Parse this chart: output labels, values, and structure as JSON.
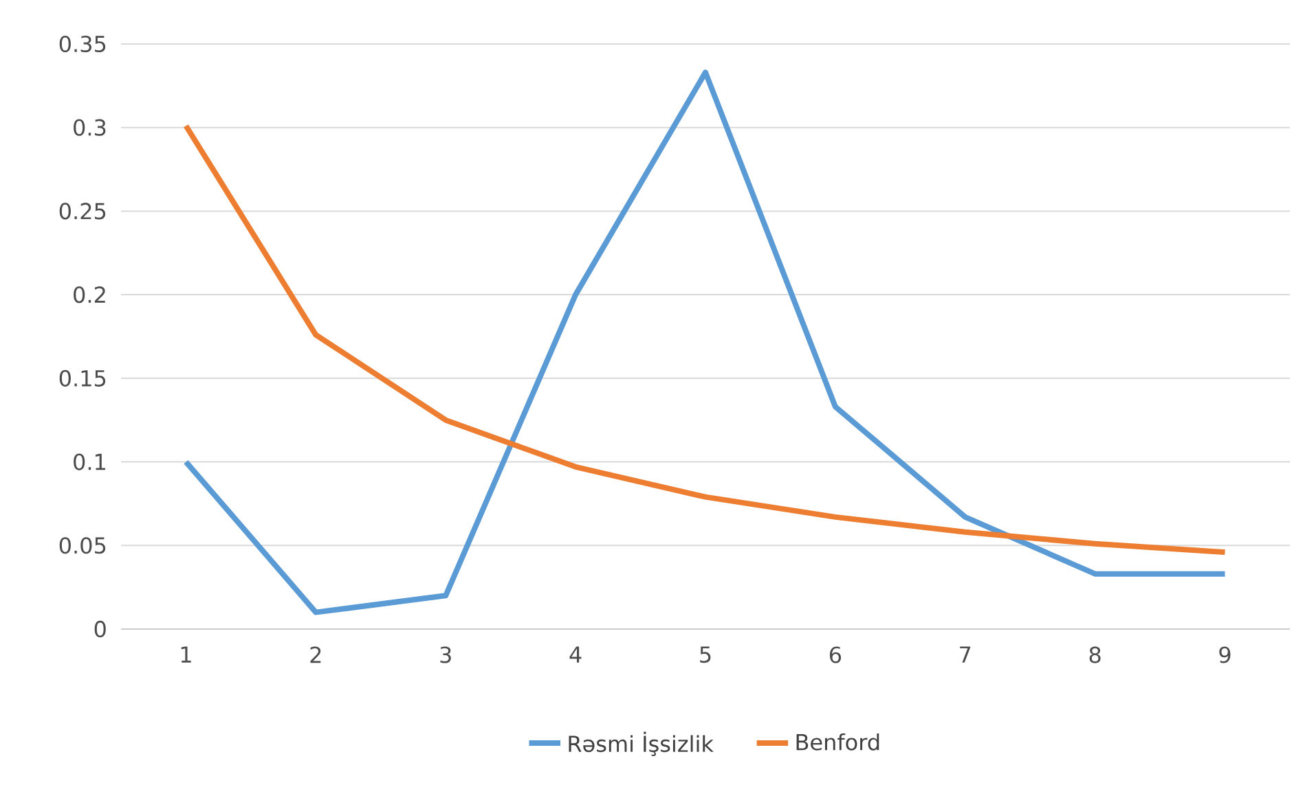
{
  "chart_data": {
    "type": "line",
    "categories": [
      "1",
      "2",
      "3",
      "4",
      "5",
      "6",
      "7",
      "8",
      "9"
    ],
    "series": [
      {
        "name": "Rəsmi İşsizlik",
        "color": "#5b9bd5",
        "values": [
          0.1,
          0.01,
          0.02,
          0.2,
          0.333,
          0.133,
          0.067,
          0.033,
          0.033
        ]
      },
      {
        "name": "Benford",
        "color": "#ed7d31",
        "values": [
          0.301,
          0.176,
          0.125,
          0.097,
          0.079,
          0.067,
          0.058,
          0.051,
          0.046
        ]
      }
    ],
    "ylim": [
      0,
      0.35
    ],
    "yticks": [
      0,
      0.05,
      0.1,
      0.15,
      0.2,
      0.25,
      0.3,
      0.35
    ],
    "grid": "y",
    "legend": "bottom"
  }
}
